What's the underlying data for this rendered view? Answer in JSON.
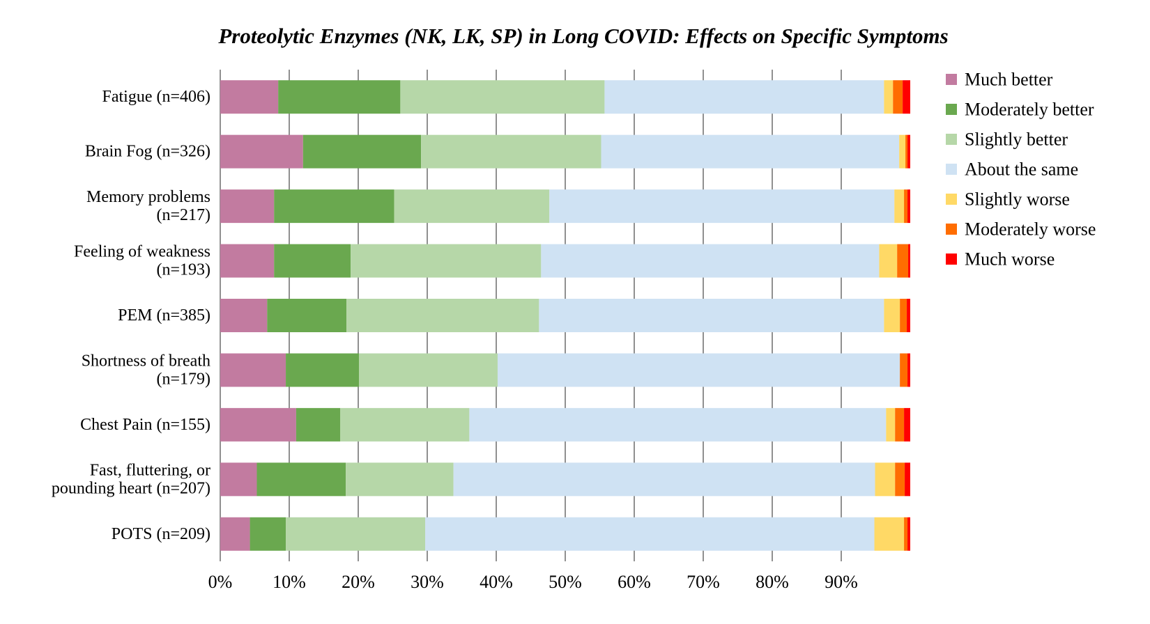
{
  "chart_data": {
    "type": "bar",
    "orientation": "horizontal",
    "stacked": true,
    "title": "Proteolytic Enzymes (NK, LK, SP) in Long COVID: Effects on Specific Symptoms",
    "xlabel": "",
    "ylabel": "",
    "xlim": [
      0,
      100
    ],
    "x_ticks": [
      "0%",
      "10%",
      "20%",
      "30%",
      "40%",
      "50%",
      "60%",
      "70%",
      "80%",
      "90%"
    ],
    "x_tick_values": [
      0,
      10,
      20,
      30,
      40,
      50,
      60,
      70,
      80,
      90
    ],
    "grid": true,
    "legend_position": "right",
    "categories": [
      [
        "Fatigue (n=406)"
      ],
      [
        "Brain Fog (n=326)"
      ],
      [
        "Memory problems",
        "(n=217)"
      ],
      [
        "Feeling of weakness",
        "(n=193)"
      ],
      [
        "PEM (n=385)"
      ],
      [
        "Shortness of breath",
        "(n=179)"
      ],
      [
        "Chest Pain (n=155)"
      ],
      [
        "Fast, fluttering, or",
        "pounding heart (n=207)"
      ],
      [
        "POTS (n=209)"
      ]
    ],
    "series": [
      {
        "name": "Much better",
        "color": "#c27ba0",
        "values": [
          8.4,
          12.0,
          7.8,
          7.8,
          6.8,
          9.5,
          11.0,
          5.3,
          4.3
        ]
      },
      {
        "name": "Moderately better",
        "color": "#6aa84f",
        "values": [
          17.7,
          17.1,
          17.4,
          11.1,
          11.5,
          10.6,
          6.4,
          12.9,
          5.2
        ]
      },
      {
        "name": "Slightly better",
        "color": "#b6d7a8",
        "values": [
          29.6,
          26.1,
          22.5,
          27.6,
          27.9,
          20.1,
          18.7,
          15.6,
          20.2
        ]
      },
      {
        "name": "About the same",
        "color": "#cfe2f3",
        "values": [
          40.5,
          43.2,
          50.0,
          49.0,
          50.0,
          58.3,
          60.4,
          61.1,
          65.1
        ]
      },
      {
        "name": "Slightly worse",
        "color": "#ffd966",
        "values": [
          1.3,
          0.9,
          1.4,
          2.6,
          2.3,
          0.0,
          1.3,
          2.9,
          4.3
        ]
      },
      {
        "name": "Moderately worse",
        "color": "#ff6d01",
        "values": [
          1.4,
          0.3,
          0.5,
          1.6,
          1.0,
          1.1,
          1.3,
          1.4,
          0.5
        ]
      },
      {
        "name": "Much worse",
        "color": "#ff0000",
        "values": [
          1.1,
          0.4,
          0.4,
          0.3,
          0.5,
          0.4,
          0.9,
          0.8,
          0.4
        ]
      }
    ]
  }
}
